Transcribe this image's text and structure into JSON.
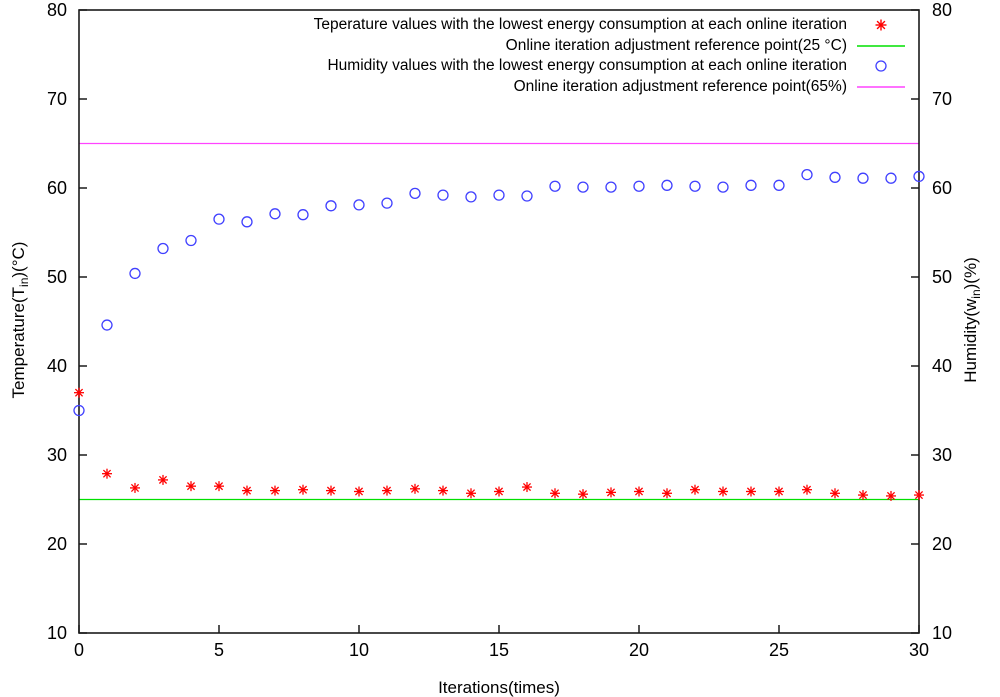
{
  "chart_data": {
    "type": "scatter",
    "title": "",
    "xlabel": "Iterations(times)",
    "ylabel_left": "Temperature(T_in)(°C)",
    "ylabel_right": "Humidity(w_in)(%)",
    "xlim": [
      0,
      30
    ],
    "ylim": [
      10,
      80
    ],
    "xticks": [
      0,
      5,
      10,
      15,
      20,
      25,
      30
    ],
    "yticks": [
      10,
      20,
      30,
      40,
      50,
      60,
      70,
      80
    ],
    "grid": false,
    "legend_position": "top-right-inside",
    "x": [
      0,
      1,
      2,
      3,
      4,
      5,
      6,
      7,
      8,
      9,
      10,
      11,
      12,
      13,
      14,
      15,
      16,
      17,
      18,
      19,
      20,
      21,
      22,
      23,
      24,
      25,
      26,
      27,
      28,
      29,
      30
    ],
    "series": [
      {
        "name": "Teperature values with the lowest energy consumption at each online iteration",
        "marker": "asterisk",
        "color": "#ff0000",
        "axis": "left",
        "values": [
          37.0,
          27.9,
          26.3,
          27.2,
          26.5,
          26.5,
          26.0,
          26.0,
          26.1,
          26.0,
          25.9,
          26.0,
          26.2,
          26.0,
          25.7,
          25.9,
          26.4,
          25.7,
          25.6,
          25.8,
          25.9,
          25.7,
          26.1,
          25.9,
          25.9,
          25.9,
          26.1,
          25.7,
          25.5,
          25.4,
          25.5
        ]
      },
      {
        "name": "Humidity values with the lowest energy consumption at each online iteration",
        "marker": "circle",
        "color": "#4040ff",
        "axis": "right",
        "values": [
          35.0,
          44.6,
          50.4,
          53.2,
          54.1,
          56.5,
          56.2,
          57.1,
          57.0,
          58.0,
          58.1,
          58.3,
          59.4,
          59.2,
          59.0,
          59.2,
          59.1,
          60.2,
          60.1,
          60.1,
          60.2,
          60.3,
          60.2,
          60.1,
          60.3,
          60.3,
          61.5,
          61.2,
          61.1,
          61.1,
          61.3
        ]
      }
    ],
    "reference_lines": [
      {
        "name": "Online iteration adjustment reference point(25 °C)",
        "value": 25,
        "color": "#00e000"
      },
      {
        "name": "Online iteration adjustment reference point(65%)",
        "value": 65,
        "color": "#ff44ff"
      }
    ]
  },
  "axes": {
    "x_label": "Iterations(times)",
    "left_label": {
      "pre": "Temperature(T",
      "sub": "in",
      "post": ")(°C)"
    },
    "right_label": {
      "pre": "Humidity(w",
      "sub": "in",
      "post": ")(%)"
    }
  },
  "legend": {
    "entries": [
      {
        "label": "Teperature values with the lowest energy consumption at each online iteration",
        "marker": "red-asterisk"
      },
      {
        "label": "Online iteration adjustment reference point(25 °C)",
        "marker": "green-line"
      },
      {
        "label": "Humidity values with the lowest energy consumption at each online iteration",
        "marker": "blue-circle"
      },
      {
        "label": "Online iteration adjustment reference point(65%)",
        "marker": "magenta-line"
      }
    ]
  }
}
